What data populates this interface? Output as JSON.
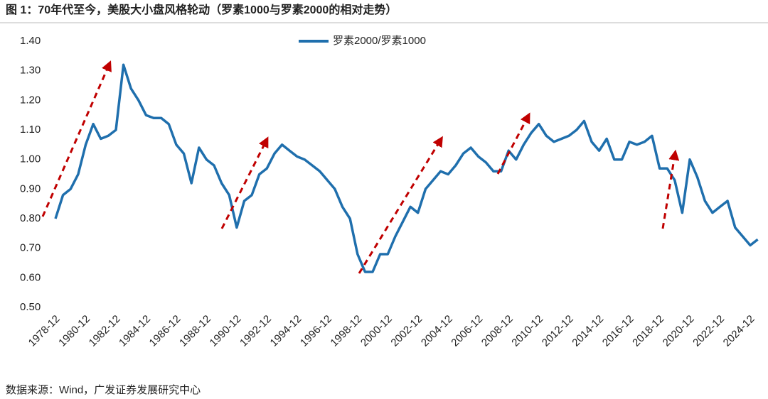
{
  "chart_data": {
    "type": "line",
    "title": "图 1：70年代至今，美股大小盘风格轮动（罗素1000与罗素2000的相对走势）",
    "source": "数据来源：Wind，广发证券发展研究中心",
    "categories": [
      "1978-12",
      null,
      null,
      null,
      "1980-12",
      null,
      null,
      null,
      "1982-12",
      null,
      null,
      null,
      "1984-12",
      null,
      null,
      null,
      "1986-12",
      null,
      null,
      null,
      "1988-12",
      null,
      null,
      null,
      "1990-12",
      null,
      null,
      null,
      "1992-12",
      null,
      null,
      null,
      "1994-12",
      null,
      null,
      null,
      "1996-12",
      null,
      null,
      null,
      "1998-12",
      null,
      null,
      null,
      "2000-12",
      null,
      null,
      null,
      "2002-12",
      null,
      null,
      null,
      "2004-12",
      null,
      null,
      null,
      "2006-12",
      null,
      null,
      null,
      "2008-12",
      null,
      null,
      null,
      "2010-12",
      null,
      null,
      null,
      "2012-12",
      null,
      null,
      null,
      "2014-12",
      null,
      null,
      null,
      "2016-12",
      null,
      null,
      null,
      "2018-12",
      null,
      null,
      null,
      "2020-12",
      null,
      null,
      null,
      "2022-12",
      null,
      null,
      null,
      "2024-12",
      null
    ],
    "series": [
      {
        "name": "罗素2000/罗素1000",
        "color": "#1f6fad",
        "values": [
          0.8,
          0.88,
          0.9,
          0.95,
          1.05,
          1.12,
          1.07,
          1.08,
          1.1,
          1.32,
          1.24,
          1.2,
          1.15,
          1.14,
          1.14,
          1.12,
          1.05,
          1.02,
          0.92,
          1.04,
          1.0,
          0.98,
          0.92,
          0.88,
          0.77,
          0.86,
          0.88,
          0.95,
          0.97,
          1.02,
          1.05,
          1.03,
          1.01,
          1.0,
          0.98,
          0.96,
          0.93,
          0.9,
          0.84,
          0.8,
          0.68,
          0.62,
          0.62,
          0.68,
          0.68,
          0.74,
          0.79,
          0.84,
          0.82,
          0.9,
          0.93,
          0.96,
          0.95,
          0.98,
          1.02,
          1.04,
          1.01,
          0.99,
          0.96,
          0.96,
          1.03,
          1.0,
          1.05,
          1.09,
          1.12,
          1.08,
          1.06,
          1.07,
          1.08,
          1.1,
          1.13,
          1.06,
          1.03,
          1.07,
          1.0,
          1.0,
          1.06,
          1.05,
          1.06,
          1.08,
          0.97,
          0.97,
          0.93,
          0.82,
          1.0,
          0.94,
          0.86,
          0.82,
          0.84,
          0.86,
          0.77,
          0.74,
          0.71,
          0.73
        ]
      }
    ],
    "ylim": [
      0.5,
      1.4
    ],
    "yticks": [
      {
        "value": 0.5,
        "label": "0.50"
      },
      {
        "value": 0.6,
        "label": "0.60"
      },
      {
        "value": 0.7,
        "label": "0.70"
      },
      {
        "value": 0.8,
        "label": "0.80"
      },
      {
        "value": 0.9,
        "label": "0.90"
      },
      {
        "value": 1.0,
        "label": "1.00"
      },
      {
        "value": 1.1,
        "label": "1.10"
      },
      {
        "value": 1.2,
        "label": "1.20"
      },
      {
        "value": 1.3,
        "label": "1.30"
      },
      {
        "value": 1.4,
        "label": "1.40"
      }
    ],
    "legend": "top"
  }
}
